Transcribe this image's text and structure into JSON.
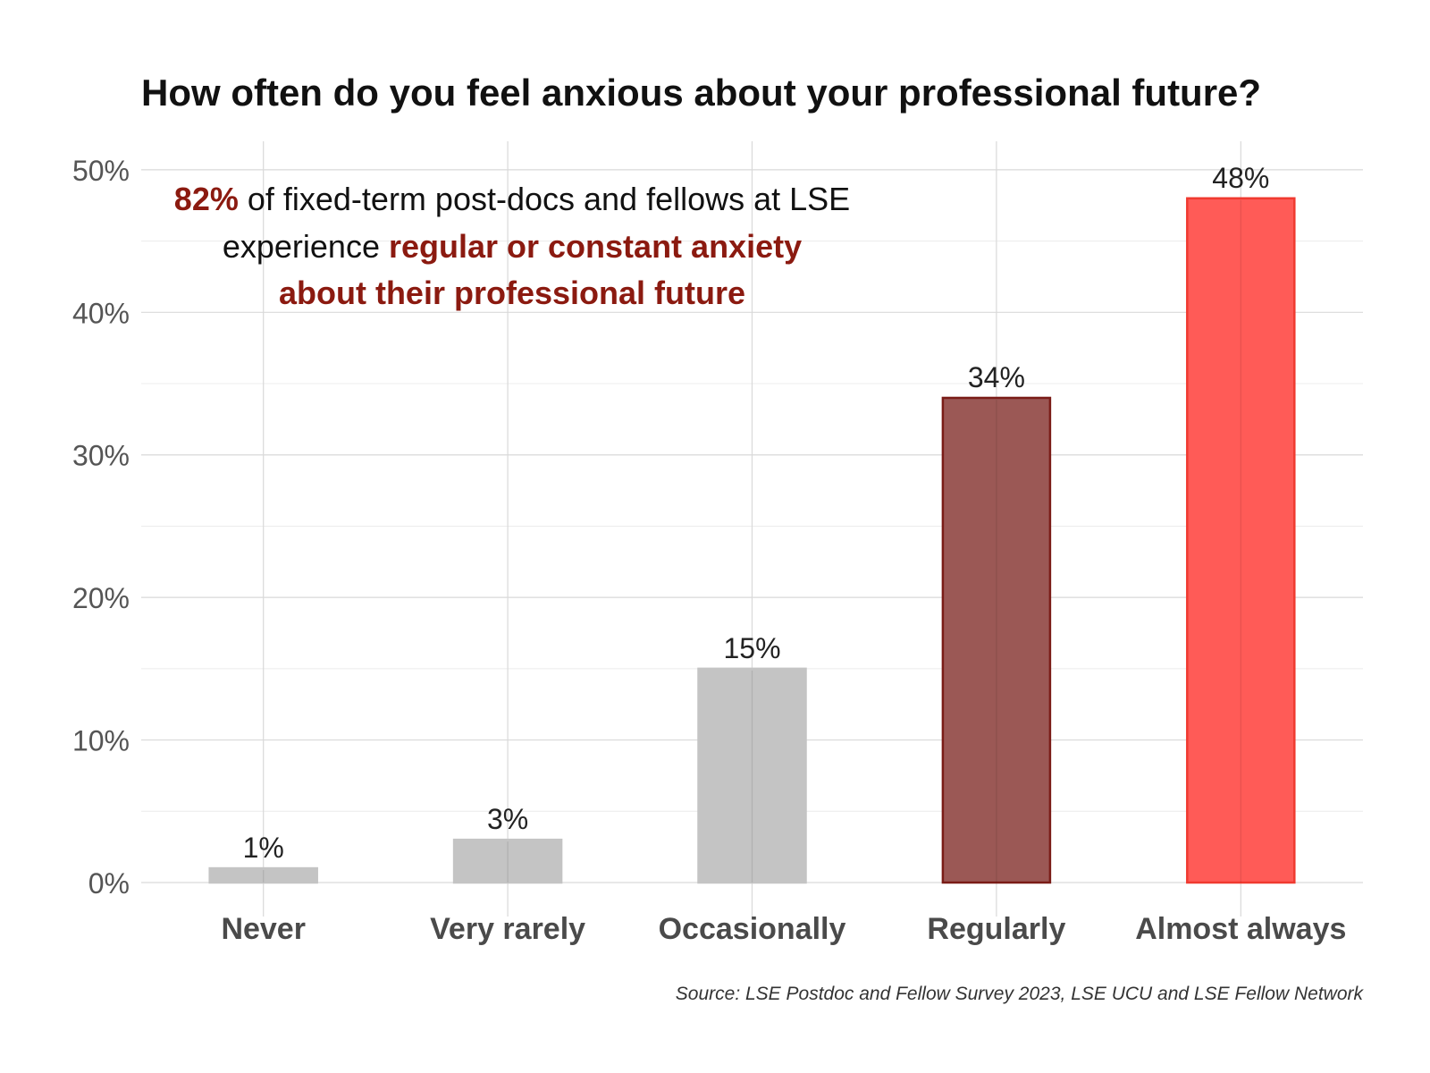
{
  "chart_data": {
    "type": "bar",
    "title": "How often do you feel anxious about your professional future?",
    "categories": [
      "Never",
      "Very rarely",
      "Occasionally",
      "Regularly",
      "Almost always"
    ],
    "values": [
      1,
      3,
      15,
      34,
      48
    ],
    "value_labels": [
      "1%",
      "3%",
      "15%",
      "34%",
      "48%"
    ],
    "bar_colors": [
      "#c4c4c4",
      "#c4c4c4",
      "#c4c4c4",
      "#9b5855",
      "#ff5b57"
    ],
    "bar_outline_colors": [
      "#c4c4c4",
      "#c4c4c4",
      "#c4c4c4",
      "#7a1c17",
      "#f03a30"
    ],
    "ylim": [
      0,
      52
    ],
    "yticks": [
      0,
      10,
      20,
      30,
      40,
      50
    ],
    "ytick_labels": [
      "0%",
      "10%",
      "20%",
      "30%",
      "40%",
      "50%"
    ],
    "xlabel": "",
    "ylabel": "",
    "grid": true,
    "annotation": {
      "line1": [
        {
          "text": "82%",
          "highlight": true
        },
        {
          "text": " of fixed-term post-docs and fellows at LSE",
          "highlight": false
        }
      ],
      "line2": [
        {
          "text": "experience ",
          "highlight": false
        },
        {
          "text": "regular or constant anxiety",
          "highlight": true
        }
      ],
      "line3": [
        {
          "text": "about their professional future",
          "highlight": true
        }
      ]
    },
    "source": "Source: LSE Postdoc and Fellow Survey 2023, LSE UCU and LSE Fellow Network"
  },
  "colors": {
    "highlight_text": "#8b1a10",
    "neutral_bar": "#c4c4c4"
  }
}
